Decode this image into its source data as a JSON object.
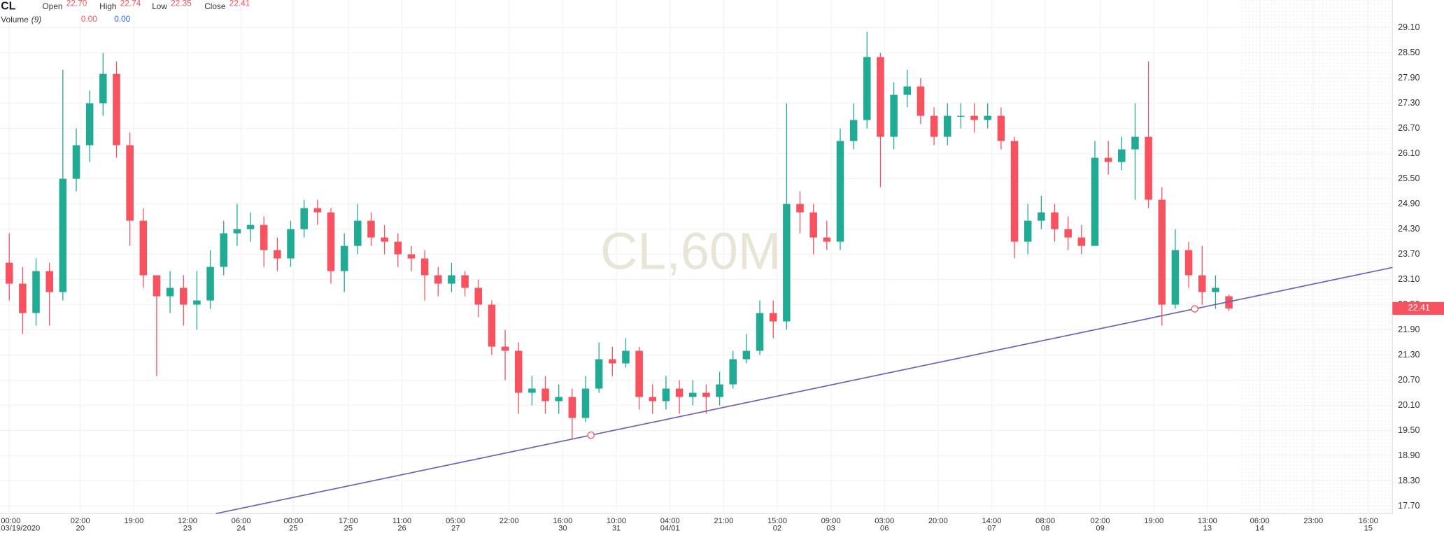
{
  "chart_data": {
    "type": "candlestick",
    "header": {
      "symbol": "CL",
      "fields": [
        {
          "label": "Open",
          "value": "22.70"
        },
        {
          "label": "High",
          "value": "22.74"
        },
        {
          "label": "Low",
          "value": "22.35"
        },
        {
          "label": "Close",
          "value": "22.41"
        }
      ],
      "volume_label": "Volume",
      "volume_period": "(9)",
      "volume_values": [
        "0.00",
        "0.00"
      ],
      "volume_colors": [
        "#f7525f",
        "#2962ff"
      ]
    },
    "watermark": "CL,60M",
    "last_price_label": "22.41",
    "up_color": "#22ab94",
    "down_color": "#f7525f",
    "grid": true,
    "x": [
      0,
      1,
      2,
      3,
      4,
      5,
      6,
      7,
      8,
      9,
      10,
      11,
      12,
      13,
      14,
      15,
      16,
      17,
      18,
      19,
      20,
      21,
      22,
      23,
      24,
      25,
      26,
      27,
      28,
      29,
      30,
      31,
      32,
      33,
      34,
      35,
      36,
      37,
      38,
      39,
      40,
      41,
      42,
      43,
      44,
      45,
      46,
      47,
      48,
      49,
      50,
      51,
      52,
      53,
      54,
      55,
      56,
      57,
      58,
      59,
      60,
      61,
      62,
      63,
      64,
      65,
      66,
      67,
      68,
      69,
      70,
      71,
      72,
      73,
      74,
      75,
      76,
      77,
      78,
      79,
      80,
      81,
      82,
      83,
      84,
      85,
      86,
      87,
      88,
      89,
      90,
      91
    ],
    "open": [
      23.5,
      23.0,
      22.3,
      23.3,
      22.8,
      25.5,
      26.3,
      27.3,
      28.0,
      26.3,
      24.5,
      23.2,
      22.7,
      22.9,
      22.5,
      22.6,
      23.4,
      24.2,
      24.3,
      24.4,
      23.8,
      23.6,
      24.3,
      24.8,
      24.7,
      23.3,
      23.9,
      24.5,
      24.1,
      24.0,
      23.7,
      23.6,
      23.2,
      23.0,
      23.2,
      22.9,
      22.5,
      21.5,
      21.4,
      20.4,
      20.5,
      20.2,
      20.3,
      19.8,
      20.5,
      21.2,
      21.1,
      21.4,
      20.3,
      20.2,
      20.5,
      20.3,
      20.4,
      20.3,
      20.6,
      21.2,
      21.4,
      22.3,
      22.1,
      24.9,
      24.7,
      24.1,
      24.0,
      26.4,
      26.9,
      28.4,
      26.5,
      27.5,
      27.7,
      27.0,
      26.5,
      27.0,
      27.0,
      26.9,
      27.0,
      26.4,
      24.0,
      24.5,
      24.7,
      24.3,
      24.1,
      23.9,
      26.0,
      25.9,
      26.2,
      26.5,
      25.0,
      22.5,
      23.8,
      23.2,
      22.8,
      22.7
    ],
    "high": [
      24.2,
      23.4,
      23.6,
      23.5,
      28.1,
      26.7,
      27.6,
      28.5,
      28.3,
      26.6,
      24.8,
      23.2,
      23.3,
      23.2,
      23.3,
      23.8,
      24.5,
      24.9,
      24.7,
      24.6,
      24.1,
      24.5,
      25.0,
      25.0,
      24.8,
      24.2,
      24.9,
      24.7,
      24.4,
      24.2,
      23.9,
      23.8,
      23.4,
      23.5,
      23.3,
      23.1,
      22.6,
      21.9,
      21.6,
      20.8,
      20.8,
      20.6,
      20.5,
      20.8,
      21.6,
      21.5,
      21.7,
      21.5,
      20.6,
      20.8,
      20.7,
      20.7,
      20.6,
      20.9,
      21.4,
      21.8,
      22.6,
      22.6,
      27.3,
      25.2,
      24.9,
      24.5,
      26.7,
      27.3,
      29.0,
      28.5,
      27.8,
      28.1,
      27.9,
      27.2,
      27.3,
      27.3,
      27.3,
      27.3,
      27.2,
      26.5,
      24.9,
      25.1,
      24.9,
      24.6,
      24.4,
      26.4,
      26.4,
      26.5,
      27.3,
      28.3,
      25.3,
      24.3,
      24.0,
      23.9,
      23.2,
      22.74
    ],
    "low": [
      22.6,
      21.8,
      22.0,
      22.0,
      22.6,
      25.2,
      25.9,
      27.0,
      26.0,
      23.9,
      22.9,
      20.8,
      22.3,
      22.0,
      21.9,
      22.4,
      23.2,
      23.9,
      24.0,
      23.4,
      23.3,
      23.4,
      24.1,
      24.4,
      23.0,
      22.8,
      23.7,
      23.9,
      23.7,
      23.4,
      23.3,
      22.6,
      22.7,
      22.8,
      22.7,
      22.2,
      21.3,
      20.7,
      19.9,
      20.1,
      19.9,
      19.9,
      19.3,
      19.7,
      20.4,
      20.8,
      21.0,
      20.0,
      19.9,
      20.0,
      19.9,
      20.1,
      19.9,
      20.1,
      20.5,
      21.1,
      21.3,
      21.7,
      21.9,
      24.2,
      23.7,
      23.8,
      23.8,
      26.2,
      26.7,
      25.3,
      26.2,
      27.2,
      26.8,
      26.3,
      26.3,
      26.7,
      26.6,
      26.7,
      26.2,
      23.6,
      23.7,
      24.3,
      24.0,
      23.8,
      23.7,
      23.9,
      25.6,
      25.7,
      25.0,
      24.8,
      22.0,
      22.4,
      22.9,
      22.5,
      22.4,
      22.35
    ],
    "close": [
      23.0,
      22.3,
      23.3,
      22.8,
      25.5,
      26.3,
      27.3,
      28.0,
      26.3,
      24.5,
      23.2,
      22.7,
      22.9,
      22.5,
      22.6,
      23.4,
      24.2,
      24.3,
      24.4,
      23.8,
      23.6,
      24.3,
      24.8,
      24.7,
      23.3,
      23.9,
      24.5,
      24.1,
      24.0,
      23.7,
      23.6,
      23.2,
      23.0,
      23.2,
      22.9,
      22.5,
      21.5,
      21.4,
      20.4,
      20.5,
      20.2,
      20.3,
      19.8,
      20.5,
      21.2,
      21.1,
      21.4,
      20.3,
      20.2,
      20.5,
      20.3,
      20.4,
      20.3,
      20.6,
      21.2,
      21.4,
      22.3,
      22.1,
      24.9,
      24.7,
      24.1,
      24.0,
      26.4,
      26.9,
      28.4,
      26.5,
      27.5,
      27.7,
      27.0,
      26.5,
      27.0,
      27.0,
      26.9,
      27.0,
      26.4,
      24.0,
      24.5,
      24.7,
      24.3,
      24.1,
      23.9,
      26.0,
      25.9,
      26.2,
      26.5,
      25.0,
      22.5,
      23.8,
      23.2,
      22.8,
      22.9,
      22.41
    ],
    "trendline": {
      "color": "#6f63b8",
      "points": [
        {
          "x": 43.4,
          "y": 19.39
        },
        {
          "x": 88.45,
          "y": 22.4
        }
      ]
    },
    "xlim": [
      -0.69,
      103.2
    ],
    "ylim": [
      17.52,
      29.76
    ],
    "yticks": [
      {
        "value": 17.7,
        "label": "17.70"
      },
      {
        "value": 18.3,
        "label": "18.30"
      },
      {
        "value": 18.9,
        "label": "18.90"
      },
      {
        "value": 19.5,
        "label": "19.50"
      },
      {
        "value": 20.1,
        "label": "20.10"
      },
      {
        "value": 20.7,
        "label": "20.70"
      },
      {
        "value": 21.3,
        "label": "21.30"
      },
      {
        "value": 21.9,
        "label": "21.90"
      },
      {
        "value": 22.5,
        "label": "22.50"
      },
      {
        "value": 23.1,
        "label": "23.10"
      },
      {
        "value": 23.7,
        "label": "23.70"
      },
      {
        "value": 24.3,
        "label": "24.30"
      },
      {
        "value": 24.9,
        "label": "24.90"
      },
      {
        "value": 25.5,
        "label": "25.50"
      },
      {
        "value": 26.1,
        "label": "26.10"
      },
      {
        "value": 26.7,
        "label": "26.70"
      },
      {
        "value": 27.3,
        "label": "27.30"
      },
      {
        "value": 27.9,
        "label": "27.90"
      },
      {
        "value": 28.5,
        "label": "28.50"
      },
      {
        "value": 29.1,
        "label": "29.10"
      }
    ],
    "xticks": [
      {
        "value": 0,
        "label": "00:00",
        "date": "03/19/2020"
      },
      {
        "value": 5.3,
        "label": "02:00",
        "date": "20"
      },
      {
        "value": 9.3,
        "label": "19:00",
        "date": ""
      },
      {
        "value": 13.3,
        "label": "12:00",
        "date": "23"
      },
      {
        "value": 17.3,
        "label": "06:00",
        "date": "24"
      },
      {
        "value": 21.2,
        "label": "00:00",
        "date": "25"
      },
      {
        "value": 25.3,
        "label": "17:00",
        "date": "25"
      },
      {
        "value": 29.3,
        "label": "11:00",
        "date": "26"
      },
      {
        "value": 33.3,
        "label": "05:00",
        "date": "27"
      },
      {
        "value": 37.3,
        "label": "22:00",
        "date": ""
      },
      {
        "value": 41.3,
        "label": "16:00",
        "date": "30"
      },
      {
        "value": 45.3,
        "label": "10:00",
        "date": "31"
      },
      {
        "value": 49.3,
        "label": "04:00",
        "date": "04/01"
      },
      {
        "value": 53.3,
        "label": "21:00",
        "date": ""
      },
      {
        "value": 57.3,
        "label": "15:00",
        "date": "02"
      },
      {
        "value": 61.3,
        "label": "09:00",
        "date": "03"
      },
      {
        "value": 65.3,
        "label": "03:00",
        "date": "06"
      },
      {
        "value": 69.3,
        "label": "20:00",
        "date": ""
      },
      {
        "value": 73.3,
        "label": "14:00",
        "date": "07"
      },
      {
        "value": 77.3,
        "label": "08:00",
        "date": "08"
      },
      {
        "value": 81.4,
        "label": "02:00",
        "date": "09"
      },
      {
        "value": 85.4,
        "label": "19:00",
        "date": ""
      },
      {
        "value": 89.4,
        "label": "13:00",
        "date": "13"
      },
      {
        "value": 93.3,
        "label": "06:00",
        "date": "14"
      },
      {
        "value": 97.3,
        "label": "23:00",
        "date": ""
      },
      {
        "value": 101.4,
        "label": "16:00",
        "date": "15"
      }
    ]
  }
}
